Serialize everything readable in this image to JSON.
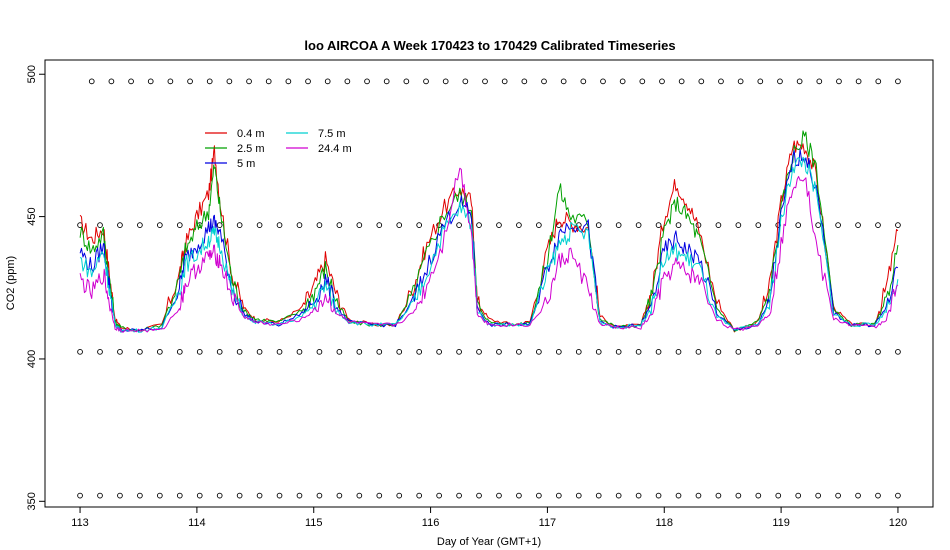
{
  "chart_data": {
    "type": "line",
    "title": "loo AIRCOA A  Week 170423 to 170429  Calibrated Timeseries",
    "xlabel": "Day of Year (GMT+1)",
    "ylabel": "CO2 (ppm)",
    "xlim": [
      112.7,
      120.3
    ],
    "ylim": [
      348,
      505
    ],
    "xticks": [
      113,
      114,
      115,
      116,
      117,
      118,
      119,
      120
    ],
    "yticks": [
      350,
      400,
      450,
      500
    ],
    "grid": false,
    "legend": {
      "position": "top-left"
    },
    "x": [
      113.0,
      113.1,
      113.2,
      113.25,
      113.3,
      113.35,
      113.5,
      113.7,
      113.85,
      113.9,
      114.0,
      114.1,
      114.15,
      114.2,
      114.3,
      114.4,
      114.5,
      114.7,
      114.9,
      115.0,
      115.1,
      115.2,
      115.3,
      115.5,
      115.7,
      115.85,
      115.95,
      116.1,
      116.25,
      116.35,
      116.4,
      116.5,
      116.7,
      116.85,
      117.0,
      117.1,
      117.2,
      117.35,
      117.45,
      117.6,
      117.8,
      117.9,
      118.0,
      118.1,
      118.2,
      118.3,
      118.45,
      118.6,
      118.8,
      118.9,
      119.0,
      119.1,
      119.2,
      119.3,
      119.45,
      119.6,
      119.8,
      119.9,
      120.0
    ],
    "series": [
      {
        "name": "0.4 m",
        "color": "#e00000",
        "values": [
          448,
          442,
          446,
          430,
          414,
          411,
          410,
          412,
          430,
          440,
          450,
          458,
          473,
          455,
          430,
          418,
          414,
          413,
          418,
          425,
          435,
          422,
          414,
          412,
          412,
          425,
          438,
          452,
          460,
          455,
          420,
          414,
          412,
          413,
          438,
          450,
          448,
          446,
          415,
          411,
          412,
          425,
          450,
          462,
          455,
          445,
          420,
          410,
          413,
          425,
          455,
          475,
          475,
          465,
          418,
          412,
          412,
          425,
          445
        ]
      },
      {
        "name": "2.5 m",
        "color": "#00a000",
        "values": [
          445,
          438,
          444,
          428,
          413,
          411,
          410,
          412,
          428,
          438,
          446,
          452,
          468,
          452,
          428,
          417,
          414,
          413,
          417,
          423,
          432,
          420,
          413,
          412,
          412,
          423,
          435,
          450,
          458,
          453,
          419,
          413,
          412,
          413,
          435,
          460,
          450,
          448,
          414,
          411,
          412,
          423,
          445,
          455,
          450,
          442,
          418,
          410,
          413,
          423,
          452,
          472,
          478,
          468,
          417,
          412,
          412,
          420,
          440
        ]
      },
      {
        "name": "5 m",
        "color": "#0000e0",
        "values": [
          438,
          432,
          440,
          426,
          412,
          410,
          410,
          411,
          425,
          435,
          440,
          446,
          448,
          444,
          425,
          416,
          413,
          412,
          416,
          420,
          428,
          418,
          413,
          412,
          412,
          420,
          430,
          446,
          455,
          450,
          418,
          412,
          412,
          412,
          432,
          444,
          448,
          446,
          413,
          411,
          412,
          420,
          438,
          442,
          438,
          435,
          416,
          410,
          412,
          420,
          450,
          470,
          472,
          460,
          416,
          412,
          412,
          418,
          432
        ]
      },
      {
        "name": "7.5 m",
        "color": "#00d0d0",
        "values": [
          435,
          430,
          438,
          425,
          412,
          410,
          410,
          411,
          424,
          433,
          437,
          442,
          444,
          440,
          424,
          415,
          413,
          412,
          415,
          419,
          426,
          417,
          413,
          412,
          412,
          419,
          428,
          444,
          453,
          448,
          417,
          412,
          412,
          412,
          430,
          440,
          445,
          444,
          413,
          411,
          412,
          419,
          435,
          438,
          435,
          432,
          415,
          410,
          412,
          419,
          448,
          468,
          470,
          458,
          416,
          412,
          412,
          417,
          428
        ]
      },
      {
        "name": "24.4 m",
        "color": "#d000d0",
        "values": [
          428,
          423,
          430,
          420,
          411,
          410,
          410,
          410,
          418,
          426,
          432,
          436,
          437,
          434,
          422,
          415,
          413,
          412,
          414,
          417,
          422,
          416,
          413,
          412,
          412,
          416,
          424,
          440,
          468,
          445,
          416,
          412,
          412,
          412,
          420,
          434,
          437,
          425,
          412,
          411,
          411,
          416,
          428,
          433,
          430,
          428,
          414,
          410,
          412,
          416,
          440,
          462,
          466,
          440,
          414,
          412,
          411,
          414,
          426
        ]
      }
    ],
    "status_rows": [
      {
        "y": 497.5,
        "x_start": 113.1,
        "x_end": 120.0,
        "count": 42
      },
      {
        "y": 447,
        "x_start": 113.0,
        "x_end": 120.0,
        "count": 42
      },
      {
        "y": 402.5,
        "x_start": 113.0,
        "x_end": 120.0,
        "count": 42
      },
      {
        "y": 352,
        "x_start": 113.0,
        "x_end": 120.0,
        "count": 42
      }
    ]
  }
}
